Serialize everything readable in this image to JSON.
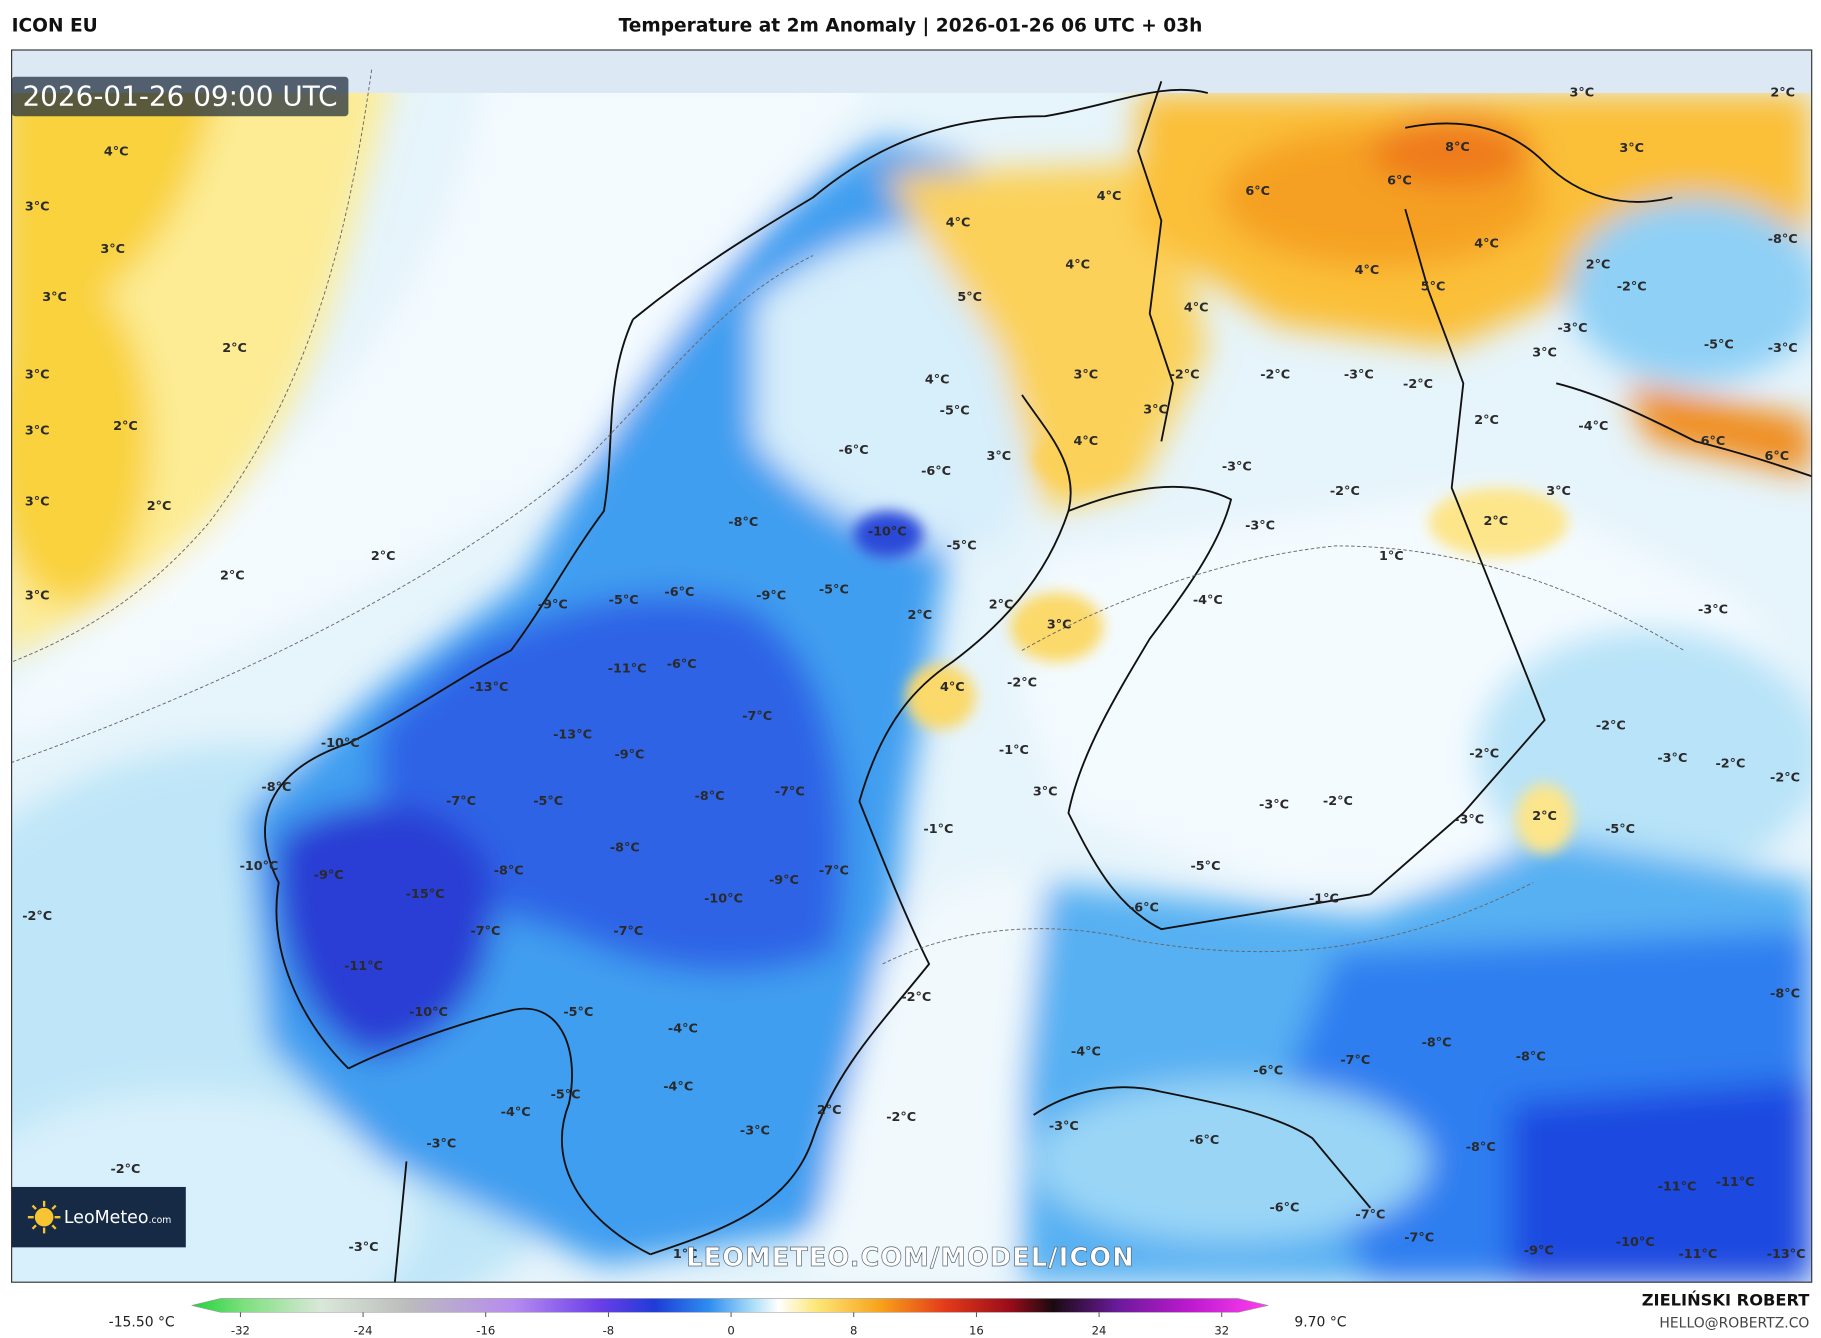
{
  "header": {
    "model": "ICON EU",
    "title": "Temperature at 2m Anomaly | 2026-01-26 06 UTC + 03h"
  },
  "map": {
    "timestamp": "2026-01-26 09:00 UTC",
    "watermark": "LEOMETEO.COM/MODEL/ICON",
    "logo": "LeoMeteo",
    "logo_suffix": ".com",
    "labels": [
      "4°C",
      "3°C",
      "3°C",
      "3°C",
      "2°C",
      "3°C",
      "2°C",
      "3°C",
      "3°C",
      "2°C",
      "2°C",
      "2°C",
      "3°C",
      "-2°C",
      "-2°C",
      "-3°C",
      "4°C",
      "5°C",
      "4°C",
      "-5°C",
      "-6°C",
      "-6°C",
      "-8°C",
      "-10°C",
      "-5°C",
      "3°C",
      "4°C",
      "3°C",
      "3°C",
      "4°C",
      "4°C",
      "6°C",
      "6°C",
      "8°C",
      "4°C",
      "4°C",
      "5°C",
      "4°C",
      "-2°C",
      "-2°C",
      "-3°C",
      "-2°C",
      "3°C",
      "-3°C",
      "-2°C",
      "2°C",
      "3°C",
      "3°C",
      "2°C",
      "-8°C",
      "-5°C",
      "-3°C",
      "-4°C",
      "6°C",
      "6°C",
      "2°C",
      "3°C",
      "2°C",
      "1°C",
      "-2°C",
      "-3°C",
      "-3°C",
      "-4°C",
      "-3°C",
      "-9°C",
      "-5°C",
      "-6°C",
      "-9°C",
      "-5°C",
      "2°C",
      "2°C",
      "3°C",
      "-11°C",
      "-6°C",
      "-13°C",
      "-7°C",
      "-13°C",
      "-10°C",
      "-9°C",
      "-2°C",
      "4°C",
      "-1°C",
      "3°C",
      "-8°C",
      "-7°C",
      "-5°C",
      "-8°C",
      "-7°C",
      "-1°C",
      "-2°C",
      "-2°C",
      "-3°C",
      "-2°C",
      "-2°C",
      "2°C",
      "-5°C",
      "-3°C",
      "-3°C",
      "-2°C",
      "-10°C",
      "-9°C",
      "-8°C",
      "-8°C",
      "-5°C",
      "-7°C",
      "-9°C",
      "-10°C",
      "-15°C",
      "-7°C",
      "-7°C",
      "-6°C",
      "-1°C",
      "-11°C",
      "-10°C",
      "-2°C",
      "-5°C",
      "-4°C",
      "-8°C",
      "-8°C",
      "-8°C",
      "-4°C",
      "-6°C",
      "-7°C",
      "-4°C",
      "-5°C",
      "2°C",
      "-2°C",
      "-3°C",
      "-4°C",
      "-3°C",
      "-6°C",
      "-8°C",
      "-6°C",
      "-7°C",
      "-11°C",
      "-11°C",
      "-7°C",
      "-9°C",
      "-10°C",
      "-11°C",
      "-13°C",
      "1°C",
      "-3°C"
    ]
  },
  "colorbar": {
    "min_label": "-15.50 °C",
    "max_label": "9.70 °C",
    "ticks": [
      -32,
      -24,
      -16,
      -8,
      0,
      8,
      16,
      24,
      32
    ]
  },
  "footer": {
    "author": "ZIELIŃSKI ROBERT",
    "email": "HELLO@ROBERTZ.CO"
  }
}
